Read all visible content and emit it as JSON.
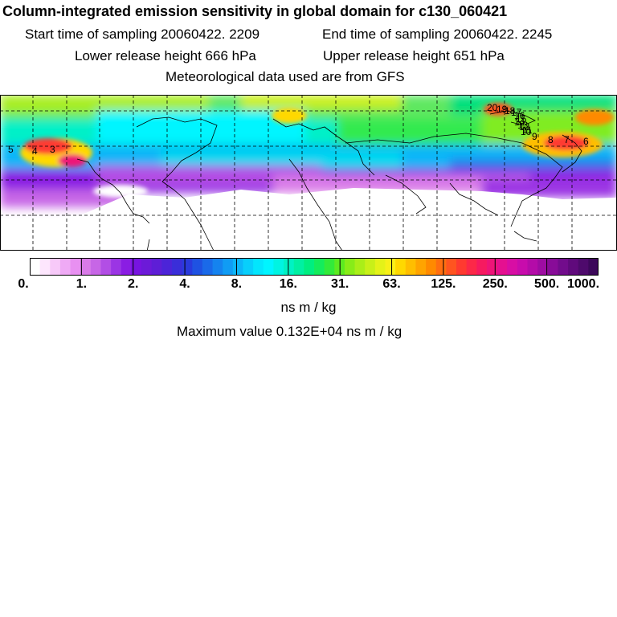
{
  "title": "Column-integrated emission sensitivity in global domain for c130_060421",
  "sampling": {
    "start": "Start time of sampling 20060422.  2209",
    "end": "End time of sampling 20060422.  2245"
  },
  "release": {
    "lower": "Lower release height  666 hPa",
    "upper": "Upper release height  651 hPa"
  },
  "met_note": "Meteorological data used are from GFS",
  "colorbar": {
    "tick_labels": [
      "0.",
      "1.",
      "2.",
      "4.",
      "8.",
      "16.",
      "31.",
      "63.",
      "125.",
      "250.",
      "500.",
      "1000."
    ],
    "colors": [
      "#ffffff",
      "#fde6fd",
      "#f7c9f9",
      "#efaaf5",
      "#e890f1",
      "#d97be8",
      "#c766e6",
      "#b24ee5",
      "#9b35e4",
      "#8a1de3",
      "#7714e0",
      "#6c1ad8",
      "#5e1ed6",
      "#4c24d8",
      "#3a2ed9",
      "#2a3adc",
      "#1f52e2",
      "#1a6ae9",
      "#1583ef",
      "#109cf4",
      "#0cb6f8",
      "#08cffb",
      "#03e6fd",
      "#00f5ff",
      "#00f4e2",
      "#00f2c3",
      "#00f0a2",
      "#00ee80",
      "#14ec5c",
      "#32ea3a",
      "#5cea20",
      "#88ec18",
      "#aaee18",
      "#c8f018",
      "#e4f218",
      "#f8f018",
      "#ffd800",
      "#ffbe00",
      "#ffa400",
      "#ff8a00",
      "#ff6e10",
      "#ff5420",
      "#ff3a30",
      "#fc2848",
      "#f61a60",
      "#ee1478",
      "#e51090",
      "#d80ea4",
      "#c80cac",
      "#b40ca8",
      "#9e0ca2",
      "#880c98",
      "#720c8c",
      "#600a7c",
      "#4e0a6c",
      "#3c085a"
    ]
  },
  "units": "ns m / kg",
  "maximum": "Maximum value  0.132E+04 ns m / kg",
  "map_labels": [
    "5",
    "4",
    "3",
    "20",
    "19",
    "18",
    "17",
    "16",
    "15",
    "14",
    "13",
    "12",
    "11",
    "10",
    "9",
    "8",
    "7",
    "6"
  ]
}
